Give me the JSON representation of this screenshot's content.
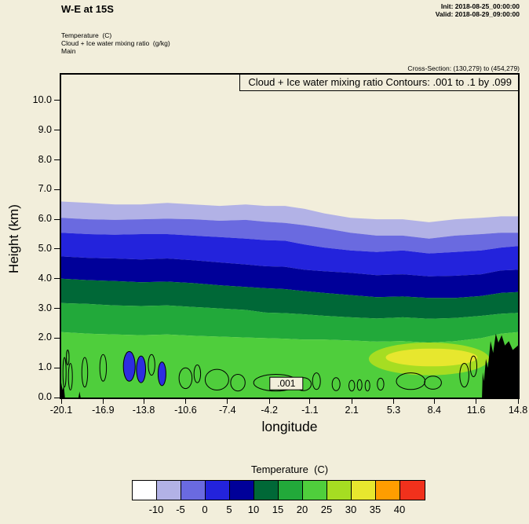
{
  "theme": {
    "background": "#f2eedb",
    "ink": "#000000",
    "cloud_inner_fill": "#2d2de0"
  },
  "header": {
    "title": "W-E at 15S",
    "init": "Init: 2018-08-25_00:00:00",
    "valid": "Valid: 2018-08-29_09:00:00",
    "fields": [
      "Temperature  (C)",
      "Cloud + Ice water mixing ratio  (g/kg)",
      "Main"
    ],
    "cross_section": "Cross-Section: (130,279) to (454,279)"
  },
  "colorbar": {
    "title": "Temperature  (C)",
    "tick_labels": [
      "-10",
      "-5",
      "0",
      "5",
      "10",
      "15",
      "20",
      "25",
      "30",
      "35",
      "40"
    ],
    "colors": [
      "#ffffff",
      "#b2b2e6",
      "#6a6ae0",
      "#2323dc",
      "#000099",
      "#006837",
      "#22a93a",
      "#4fce3c",
      "#a6dd22",
      "#e7e72e",
      "#ff9d00",
      "#f1311c"
    ]
  },
  "chart_data": {
    "type": "heatmap",
    "subtype": "filled-contour-vertical-cross-section",
    "title": "Cloud + Ice water mixing ratio Contours: .001 to .1 by .099",
    "xlabel": "longitude",
    "ylabel": "Height (km)",
    "xlim": [
      -20.1,
      14.8
    ],
    "ylim": [
      0,
      10.87
    ],
    "grid": false,
    "x_tick_labels": [
      "-20.1",
      "-16.9",
      "-13.8",
      "-10.6",
      "-7.4",
      "-4.2",
      "-1.1",
      "2.1",
      "5.3",
      "8.4",
      "11.6",
      "14.8"
    ],
    "y_tick_labels": [
      "0.0",
      "1.0",
      "2.0",
      "3.0",
      "4.0",
      "5.0",
      "6.0",
      "7.0",
      "8.0",
      "9.0",
      "10.0"
    ],
    "temperature_band_edges_c": [
      -10,
      -5,
      0,
      5,
      10,
      15,
      20,
      25,
      30,
      35,
      40
    ],
    "x_samples": [
      -20.1,
      -18,
      -16,
      -14,
      -12,
      -10,
      -8,
      -6,
      -4.5,
      -3,
      -1.5,
      0,
      2,
      4,
      6,
      8,
      10,
      12,
      13.5,
      14.8
    ],
    "isotherms": [
      {
        "level_c": -10,
        "heights_km": [
          6.6,
          6.55,
          6.5,
          6.5,
          6.55,
          6.5,
          6.45,
          6.5,
          6.45,
          6.45,
          6.35,
          6.2,
          6.05,
          6.0,
          6.0,
          5.9,
          6.0,
          6.05,
          6.1,
          6.1
        ]
      },
      {
        "level_c": -5,
        "heights_km": [
          6.05,
          6.0,
          5.98,
          6.0,
          6.02,
          6.0,
          5.95,
          5.98,
          5.92,
          5.88,
          5.8,
          5.7,
          5.55,
          5.45,
          5.45,
          5.35,
          5.45,
          5.5,
          5.55,
          5.55
        ]
      },
      {
        "level_c": 0,
        "heights_km": [
          5.55,
          5.5,
          5.48,
          5.5,
          5.5,
          5.45,
          5.4,
          5.35,
          5.3,
          5.28,
          5.15,
          5.05,
          4.95,
          4.9,
          4.95,
          4.85,
          4.9,
          4.95,
          5.05,
          5.1
        ]
      },
      {
        "level_c": 5,
        "heights_km": [
          4.75,
          4.7,
          4.68,
          4.65,
          4.68,
          4.62,
          4.55,
          4.48,
          4.42,
          4.4,
          4.3,
          4.25,
          4.2,
          4.12,
          4.15,
          4.08,
          4.1,
          4.15,
          4.28,
          4.3
        ]
      },
      {
        "level_c": 10,
        "heights_km": [
          4.0,
          3.95,
          3.92,
          3.88,
          3.9,
          3.85,
          3.78,
          3.72,
          3.68,
          3.65,
          3.58,
          3.52,
          3.45,
          3.38,
          3.4,
          3.35,
          3.35,
          3.42,
          3.52,
          3.55
        ]
      },
      {
        "level_c": 15,
        "heights_km": [
          3.18,
          3.15,
          3.1,
          3.08,
          3.1,
          3.05,
          3.0,
          2.95,
          2.86,
          2.84,
          2.8,
          2.75,
          2.7,
          2.66,
          2.7,
          2.65,
          2.68,
          2.75,
          2.82,
          2.85
        ]
      },
      {
        "level_c": 20,
        "heights_km": [
          2.2,
          2.15,
          2.12,
          2.1,
          2.12,
          2.08,
          2.05,
          2.02,
          2.0,
          1.98,
          1.95,
          1.95,
          1.92,
          1.88,
          1.9,
          1.85,
          1.9,
          2.0,
          2.15,
          2.2
        ]
      }
    ],
    "warm_patches": [
      {
        "level_c": 25,
        "lon": 8.0,
        "km": 1.3,
        "rx": 4.6,
        "ry": 0.55
      },
      {
        "level_c": 30,
        "lon": 8.2,
        "km": 1.35,
        "rx": 3.5,
        "ry": 0.3
      }
    ],
    "terrain": [
      [
        [
          12.05,
          0
        ],
        [
          12.1,
          0.85
        ],
        [
          12.2,
          0.55
        ],
        [
          12.35,
          1.3
        ],
        [
          12.5,
          1.0
        ],
        [
          12.7,
          1.9
        ],
        [
          12.9,
          1.5
        ],
        [
          13.1,
          2.15
        ],
        [
          13.3,
          1.85
        ],
        [
          13.55,
          2.1
        ],
        [
          13.8,
          1.75
        ],
        [
          14.1,
          1.9
        ],
        [
          14.4,
          1.6
        ],
        [
          14.8,
          1.75
        ],
        [
          14.8,
          0
        ]
      ],
      [
        [
          -20.1,
          0.5
        ],
        [
          -20.0,
          0.25
        ],
        [
          -19.9,
          0.4
        ],
        [
          -19.82,
          0
        ],
        [
          -20.1,
          0
        ]
      ],
      [
        [
          -18.78,
          0
        ],
        [
          -18.7,
          0.2
        ],
        [
          -18.62,
          0
        ]
      ]
    ],
    "cloud_contours": {
      "levels_gkg": [
        0.001,
        0.1
      ],
      "label": ".001",
      "label_pos": {
        "lon": -2.9,
        "km": 0.47
      },
      "blobs": [
        [
          -19.85,
          0.85,
          0.12,
          0.5,
          0
        ],
        [
          -19.6,
          1.35,
          0.1,
          0.25,
          0
        ],
        [
          -19.4,
          0.7,
          0.15,
          0.45,
          0
        ],
        [
          -18.3,
          0.85,
          0.22,
          0.5,
          0
        ],
        [
          -16.9,
          1.0,
          0.25,
          0.45,
          0
        ],
        [
          -14.9,
          1.05,
          0.45,
          0.5,
          1
        ],
        [
          -14.0,
          0.95,
          0.35,
          0.45,
          1
        ],
        [
          -13.2,
          1.1,
          0.25,
          0.35,
          0
        ],
        [
          -12.4,
          0.8,
          0.3,
          0.4,
          1
        ],
        [
          -10.6,
          0.65,
          0.5,
          0.35,
          0
        ],
        [
          -9.7,
          0.8,
          0.25,
          0.3,
          0
        ],
        [
          -8.2,
          0.6,
          0.9,
          0.35,
          0
        ],
        [
          -6.6,
          0.5,
          0.55,
          0.28,
          0
        ],
        [
          -3.7,
          0.5,
          1.7,
          0.28,
          0
        ],
        [
          -1.6,
          0.45,
          0.6,
          0.22,
          0
        ],
        [
          -0.6,
          0.55,
          0.3,
          0.28,
          0
        ],
        [
          0.9,
          0.45,
          0.3,
          0.22,
          0
        ],
        [
          2.1,
          0.4,
          0.22,
          0.18,
          0
        ],
        [
          2.7,
          0.42,
          0.18,
          0.18,
          0
        ],
        [
          3.3,
          0.4,
          0.18,
          0.18,
          0
        ],
        [
          4.3,
          0.45,
          0.25,
          0.2,
          0
        ],
        [
          6.6,
          0.55,
          1.1,
          0.28,
          0
        ],
        [
          8.3,
          0.5,
          0.65,
          0.22,
          0
        ],
        [
          10.7,
          0.75,
          0.35,
          0.4,
          0
        ],
        [
          11.4,
          1.05,
          0.25,
          0.35,
          0
        ]
      ]
    }
  }
}
